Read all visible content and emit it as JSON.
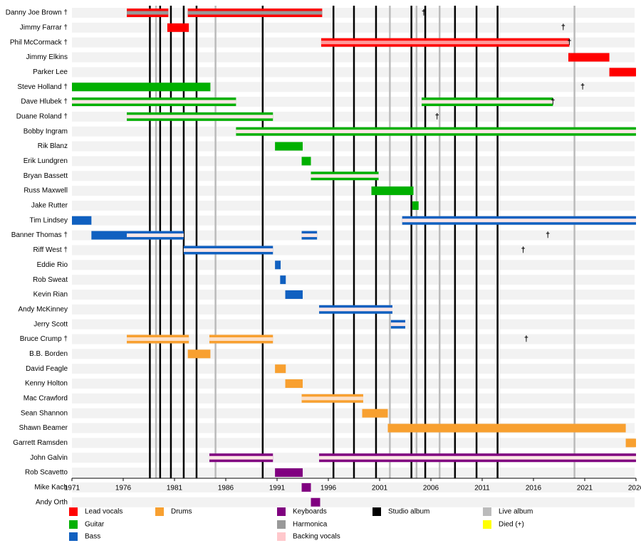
{
  "chart_data": {
    "type": "timeline",
    "xlim": [
      1971,
      2026
    ],
    "xticks": [
      1971,
      1976,
      1981,
      1986,
      1991,
      1996,
      2001,
      2006,
      2011,
      2016,
      2021,
      2026
    ],
    "died_marker": "†",
    "members": [
      {
        "name": "Danny Joe Brown †",
        "died": 2005.3,
        "segments": [
          {
            "start": 1976.35,
            "end": 1980.4,
            "color": "#ff0000",
            "stripe": "#999999"
          },
          {
            "start": 1982.3,
            "end": 1995.4,
            "color": "#ff0000",
            "stripe": "#999999"
          }
        ]
      },
      {
        "name": "Jimmy Farrar †",
        "died": 2018.9,
        "segments": [
          {
            "start": 1980.3,
            "end": 1982.4,
            "color": "#ff0000"
          }
        ]
      },
      {
        "name": "Phil McCormack †",
        "died": 2019.5,
        "segments": [
          {
            "start": 1995.3,
            "end": 2019.5,
            "color": "#ff0000",
            "stripe": "#ff9a9a"
          }
        ]
      },
      {
        "name": "Jimmy Elkins",
        "segments": [
          {
            "start": 2019.4,
            "end": 2023.4,
            "color": "#ff0000"
          }
        ]
      },
      {
        "name": "Parker Lee",
        "segments": [
          {
            "start": 2023.4,
            "end": 2026,
            "color": "#ff0000"
          }
        ]
      },
      {
        "name": "Steve Holland †",
        "died": 2020.8,
        "segments": [
          {
            "start": 1971,
            "end": 1984.5,
            "color": "#00b000"
          }
        ]
      },
      {
        "name": "Dave Hlubek †",
        "died": 2017.9,
        "segments": [
          {
            "start": 1971,
            "end": 1987,
            "color": "#00b000",
            "stripe": "#fbe6e6"
          },
          {
            "start": 2005.1,
            "end": 2017.9,
            "color": "#00b000",
            "stripe": "#fbe6e6"
          }
        ]
      },
      {
        "name": "Duane Roland †",
        "died": 2006.6,
        "segments": [
          {
            "start": 1976.35,
            "end": 1990.6,
            "color": "#00b000",
            "stripe": "#fbe6e6"
          }
        ]
      },
      {
        "name": "Bobby Ingram",
        "segments": [
          {
            "start": 1987,
            "end": 2026,
            "color": "#00b000",
            "stripe": "#fbe6e6"
          }
        ]
      },
      {
        "name": "Rik Blanz",
        "segments": [
          {
            "start": 1990.8,
            "end": 1993.5,
            "color": "#00b000"
          }
        ]
      },
      {
        "name": "Erik Lundgren",
        "segments": [
          {
            "start": 1993.4,
            "end": 1994.3,
            "color": "#00b000"
          }
        ]
      },
      {
        "name": "Bryan Bassett",
        "segments": [
          {
            "start": 1994.3,
            "end": 2000.9,
            "color": "#00b000",
            "stripe": "#fbe6e6"
          }
        ]
      },
      {
        "name": "Russ Maxwell",
        "segments": [
          {
            "start": 2000.2,
            "end": 2004.3,
            "color": "#00b000"
          }
        ]
      },
      {
        "name": "Jake Rutter",
        "segments": [
          {
            "start": 2004.2,
            "end": 2004.8,
            "color": "#00b000"
          }
        ]
      },
      {
        "name": "Tim Lindsey",
        "segments": [
          {
            "start": 1971,
            "end": 1972.9,
            "color": "#1060c0"
          },
          {
            "start": 2003.2,
            "end": 2026,
            "color": "#1060c0",
            "stripe": "#fbe6e6"
          }
        ]
      },
      {
        "name": "Banner Thomas †",
        "died": 2017.4,
        "segments": [
          {
            "start": 1972.9,
            "end": 1976.35,
            "color": "#1060c0"
          },
          {
            "start": 1976.35,
            "end": 1981.9,
            "color": "#1060c0",
            "stripe": "#fbe6e6"
          },
          {
            "start": 1993.4,
            "end": 1994.9,
            "color": "#1060c0",
            "stripe": "#fbe6e6"
          }
        ]
      },
      {
        "name": "Riff West †",
        "died": 2015,
        "segments": [
          {
            "start": 1981.9,
            "end": 1990.6,
            "color": "#1060c0",
            "stripe": "#fbe6e6"
          }
        ]
      },
      {
        "name": "Eddie Rio",
        "segments": [
          {
            "start": 1990.8,
            "end": 1991.35,
            "color": "#1060c0"
          }
        ]
      },
      {
        "name": "Rob Sweat",
        "segments": [
          {
            "start": 1991.3,
            "end": 1991.85,
            "color": "#1060c0"
          }
        ]
      },
      {
        "name": "Kevin Rian",
        "segments": [
          {
            "start": 1991.8,
            "end": 1993.5,
            "color": "#1060c0"
          }
        ]
      },
      {
        "name": "Andy McKinney",
        "segments": [
          {
            "start": 1995.1,
            "end": 2002.25,
            "color": "#1060c0",
            "stripe": "#fbe6e6"
          }
        ]
      },
      {
        "name": "Jerry Scott",
        "segments": [
          {
            "start": 2002.1,
            "end": 2003.5,
            "color": "#1060c0",
            "stripe": "#fbe6e6"
          }
        ]
      },
      {
        "name": "Bruce Crump †",
        "died": 2015.3,
        "segments": [
          {
            "start": 1976.35,
            "end": 1982.4,
            "color": "#f8a030",
            "stripe": "#fce0c8"
          },
          {
            "start": 1984.4,
            "end": 1990.6,
            "color": "#f8a030",
            "stripe": "#fce0c8"
          }
        ]
      },
      {
        "name": "B.B. Borden",
        "segments": [
          {
            "start": 1982.3,
            "end": 1984.5,
            "color": "#f8a030"
          }
        ]
      },
      {
        "name": "David Feagle",
        "segments": [
          {
            "start": 1990.8,
            "end": 1991.85,
            "color": "#f8a030"
          }
        ]
      },
      {
        "name": "Kenny Holton",
        "segments": [
          {
            "start": 1991.8,
            "end": 1993.5,
            "color": "#f8a030"
          }
        ]
      },
      {
        "name": "Mac Crawford",
        "segments": [
          {
            "start": 1993.4,
            "end": 1999.4,
            "color": "#f8a030",
            "stripe": "#fce0c8"
          }
        ]
      },
      {
        "name": "Sean Shannon",
        "segments": [
          {
            "start": 1999.3,
            "end": 2001.8,
            "color": "#f8a030"
          }
        ]
      },
      {
        "name": "Shawn Beamer",
        "segments": [
          {
            "start": 2001.8,
            "end": 2025,
            "color": "#f8a030"
          }
        ]
      },
      {
        "name": "Garrett Ramsden",
        "segments": [
          {
            "start": 2025,
            "end": 2026,
            "color": "#f8a030"
          }
        ]
      },
      {
        "name": "John Galvin",
        "segments": [
          {
            "start": 1984.4,
            "end": 1990.6,
            "color": "#800080",
            "stripe": "#fbe6e6"
          },
          {
            "start": 1995.1,
            "end": 2026,
            "color": "#800080",
            "stripe": "#fbe6e6"
          }
        ]
      },
      {
        "name": "Rob Scavetto",
        "segments": [
          {
            "start": 1990.8,
            "end": 1993.5,
            "color": "#800080"
          }
        ]
      },
      {
        "name": "Mike Kach",
        "segments": [
          {
            "start": 1993.4,
            "end": 1994.3,
            "color": "#800080"
          }
        ]
      },
      {
        "name": "Andy Orth",
        "segments": [
          {
            "start": 1994.3,
            "end": 1995.2,
            "color": "#800080"
          }
        ]
      }
    ],
    "studio_albums": [
      1978.6,
      1979.6,
      1980.65,
      1981.9,
      1983.15,
      1989.6,
      1996.5,
      1998.5,
      2000.65,
      2004.1,
      2005.45,
      2008.35,
      2010.45,
      2012.5
    ],
    "live_albums": [
      1979.2,
      1985.0,
      2002.0,
      2004.6,
      2006.85,
      2020.0
    ],
    "legend": [
      {
        "name": "Lead vocals",
        "color": "#ff0000"
      },
      {
        "name": "Guitar",
        "color": "#00b000"
      },
      {
        "name": "Bass",
        "color": "#1060c0"
      },
      {
        "name": "Drums",
        "color": "#f8a030"
      },
      {
        "name": "Keyboards",
        "color": "#800080"
      },
      {
        "name": "Harmonica",
        "color": "#999999"
      },
      {
        "name": "Backing vocals",
        "color": "#ffc8cc"
      },
      {
        "name": "Studio album",
        "color": "#000000"
      },
      {
        "name": "Live album",
        "color": "#bbbbbb"
      },
      {
        "name": "Died (+)",
        "color": "#ffff00"
      }
    ]
  }
}
